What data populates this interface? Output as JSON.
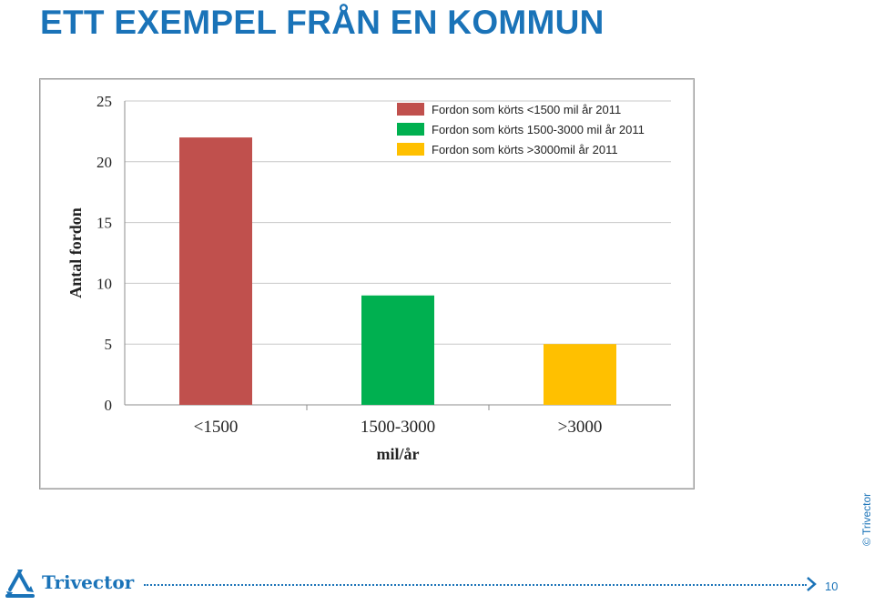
{
  "slide": {
    "title": "ETT EXEMPEL FRÅN EN KOMMUN",
    "copyright": "© Trivector",
    "brand": "Trivector",
    "page_number": "10"
  },
  "colors": {
    "title": "#1a73b8",
    "red": "#c0504d",
    "green": "#00b050",
    "yellow": "#ffc000"
  },
  "icons": [
    "trivector-logo-icon",
    "chevron-right-icon"
  ],
  "chart_data": {
    "type": "bar",
    "categories": [
      "<1500",
      "1500-3000",
      ">3000"
    ],
    "values": [
      22,
      9,
      5
    ],
    "colors": [
      "#c0504d",
      "#00b050",
      "#ffc000"
    ],
    "legend": [
      "Fordon som körts <1500 mil år 2011",
      "Fordon som körts 1500-3000 mil år 2011",
      "Fordon som körts >3000mil år 2011"
    ],
    "legend_position": "top-right",
    "xlabel": "mil/år",
    "ylabel": "Antal fordon",
    "ylim": [
      0,
      25
    ],
    "yticks": [
      0,
      5,
      10,
      15,
      20,
      25
    ],
    "grid": true
  }
}
